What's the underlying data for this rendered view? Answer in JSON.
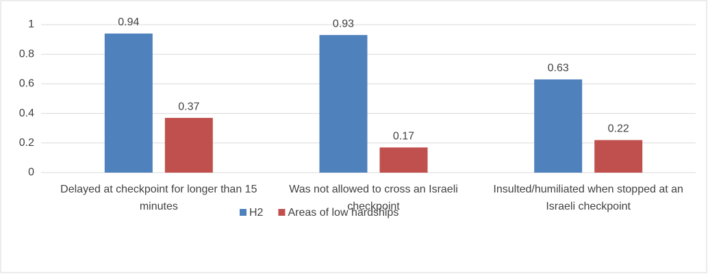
{
  "chart_data": {
    "type": "bar",
    "categories": [
      "Delayed at checkpoint for longer than 15 minutes",
      "Was not allowed to cross an Israeli checkpoint",
      "Insulted/humiliated when stopped at an Israeli checkpoint"
    ],
    "series": [
      {
        "name": "H2",
        "color": "#4f81bd",
        "values": [
          0.94,
          0.93,
          0.63
        ]
      },
      {
        "name": "Areas of low hardships",
        "color": "#c0504d",
        "values": [
          0.37,
          0.17,
          0.22
        ]
      }
    ],
    "ylim": [
      0,
      1
    ],
    "yticks": [
      0,
      0.2,
      0.4,
      0.6,
      0.8,
      1
    ],
    "grid": true,
    "legend": "bottom"
  }
}
